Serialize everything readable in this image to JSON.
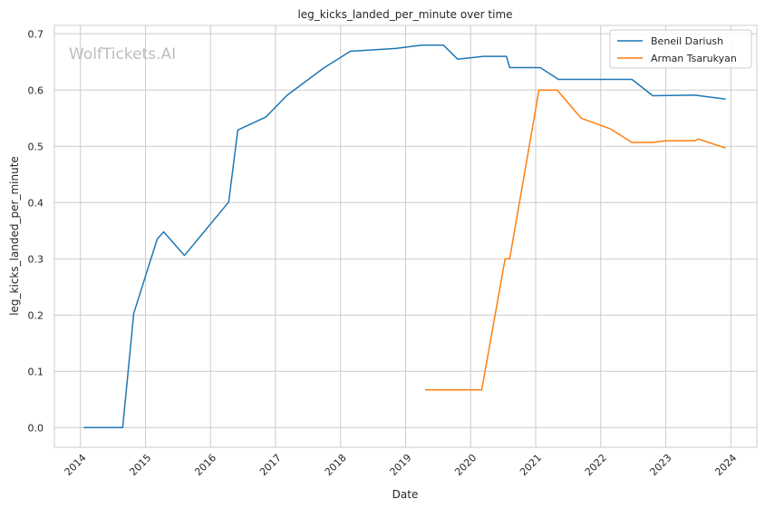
{
  "chart_data": {
    "type": "line",
    "title": "leg_kicks_landed_per_minute over time",
    "xlabel": "Date",
    "ylabel": "leg_kicks_landed_per_minute",
    "watermark": "WolfTickets.AI",
    "xlim": [
      2013.6,
      2024.4
    ],
    "ylim": [
      -0.035,
      0.715
    ],
    "x_ticks": [
      2014,
      2015,
      2016,
      2017,
      2018,
      2019,
      2020,
      2021,
      2022,
      2023,
      2024
    ],
    "x_tick_labels": [
      "2014",
      "2015",
      "2016",
      "2017",
      "2018",
      "2019",
      "2020",
      "2021",
      "2022",
      "2023",
      "2024"
    ],
    "y_ticks": [
      0.0,
      0.1,
      0.2,
      0.3,
      0.4,
      0.5,
      0.6,
      0.7
    ],
    "y_tick_labels": [
      "0.0",
      "0.1",
      "0.2",
      "0.3",
      "0.4",
      "0.5",
      "0.6",
      "0.7"
    ],
    "grid": true,
    "legend_position": "top-right",
    "series": [
      {
        "name": "Beneil Dariush",
        "color": "#1f77b4",
        "x": [
          2014.05,
          2014.65,
          2014.82,
          2015.18,
          2015.28,
          2015.6,
          2016.28,
          2016.42,
          2016.85,
          2017.18,
          2017.75,
          2018.15,
          2018.85,
          2019.25,
          2019.58,
          2019.8,
          2020.2,
          2020.55,
          2020.6,
          2021.07,
          2021.35,
          2022.48,
          2022.8,
          2023.45,
          2023.92
        ],
        "y": [
          0.0,
          0.0,
          0.203,
          0.335,
          0.348,
          0.306,
          0.401,
          0.529,
          0.552,
          0.591,
          0.64,
          0.669,
          0.674,
          0.68,
          0.68,
          0.655,
          0.66,
          0.66,
          0.64,
          0.64,
          0.619,
          0.619,
          0.59,
          0.591,
          0.584
        ]
      },
      {
        "name": "Arman Tsarukyan",
        "color": "#ff7f0e",
        "x": [
          2019.3,
          2020.17,
          2020.53,
          2020.6,
          2021.05,
          2021.33,
          2021.7,
          2022.15,
          2022.48,
          2022.8,
          2023.0,
          2023.45,
          2023.5,
          2023.92
        ],
        "y": [
          0.067,
          0.067,
          0.3,
          0.3,
          0.6,
          0.6,
          0.55,
          0.531,
          0.507,
          0.507,
          0.51,
          0.51,
          0.513,
          0.497
        ]
      }
    ]
  }
}
